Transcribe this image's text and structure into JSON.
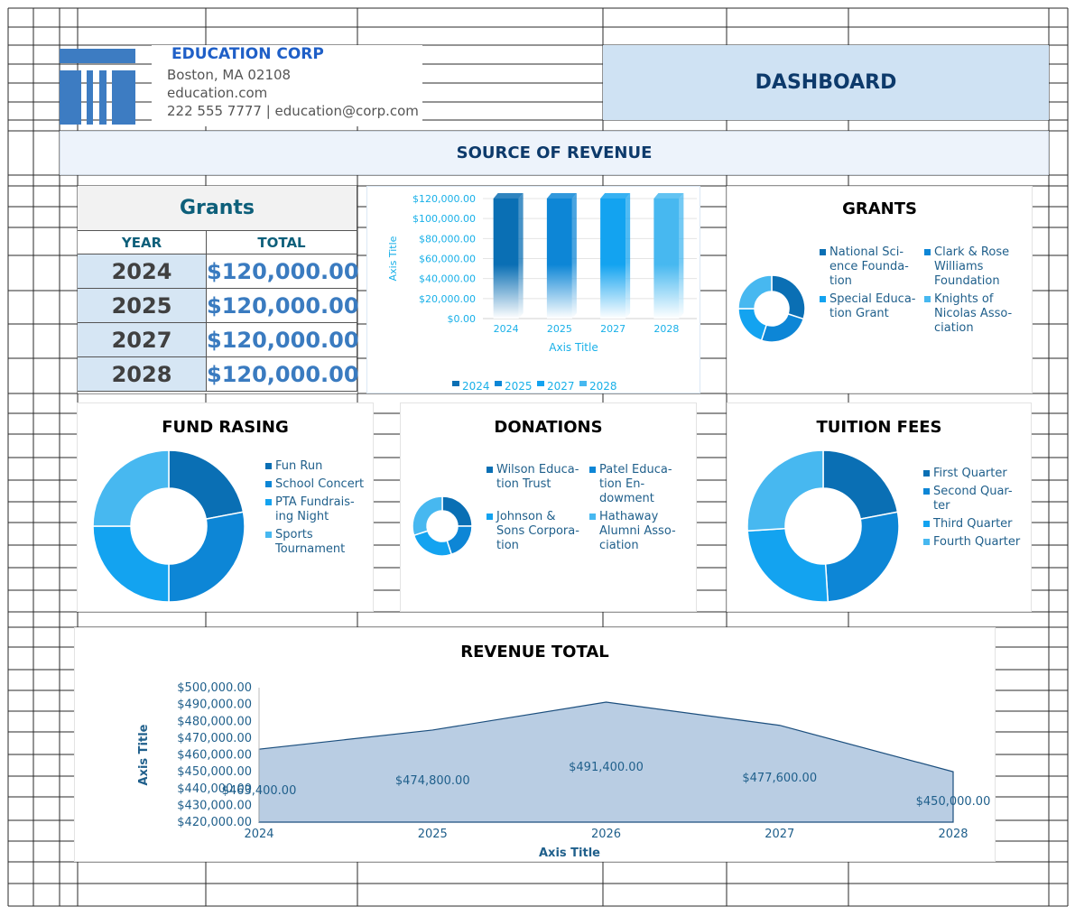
{
  "company": {
    "name": "EDUCATION CORP",
    "address": "Boston, MA 02108",
    "website": "education.com",
    "contact": "222 555 7777 | education@corp.com"
  },
  "dashboard_title": "DASHBOARD",
  "section_title": "SOURCE OF REVENUE",
  "grants_table": {
    "title": "Grants",
    "col_year": "YEAR",
    "col_total": "TOTAL",
    "rows": [
      {
        "year": "2024",
        "total": "$120,000.00"
      },
      {
        "year": "2025",
        "total": "$120,000.00"
      },
      {
        "year": "2027",
        "total": "$120,000.00"
      },
      {
        "year": "2028",
        "total": "$120,000.00"
      }
    ]
  },
  "colors": {
    "c1": "#0a6fb4",
    "c2": "#0d86d6",
    "c3": "#13a3f0",
    "c4": "#47b8f0",
    "header_blue": "#1f5fc7",
    "navy": "#0d3a6b",
    "light_panel": "#cfe2f3"
  },
  "chart_data": [
    {
      "type": "bar",
      "categories": [
        "2024",
        "2025",
        "2027",
        "2028"
      ],
      "values": [
        120000,
        120000,
        120000,
        120000
      ],
      "xlabel": "Axis Title",
      "ylabel": "Axis Title",
      "ylim": [
        0,
        120000
      ],
      "yticks": [
        "$0.00",
        "$20,000.00",
        "$40,000.00",
        "$60,000.00",
        "$80,000.00",
        "$100,000.00",
        "$120,000.00"
      ],
      "legend": [
        "2024",
        "2025",
        "2027",
        "2028"
      ],
      "legend_position": "bottom"
    },
    {
      "type": "pie",
      "title": "GRANTS",
      "labels": [
        "National Science Foundation",
        "Clark & Rose Williams Foundation",
        "Special Education Grant",
        "Knights of Nicolas Association"
      ],
      "legend_lines": [
        [
          "National Sci-",
          "ence Founda-",
          "tion"
        ],
        [
          "Clark & Rose",
          "Williams",
          "Foundation"
        ],
        [
          "Special Educa-",
          "tion Grant"
        ],
        [
          "Knights of",
          "Nicolas Asso-",
          "ciation"
        ]
      ],
      "values": [
        30,
        25,
        20,
        25
      ]
    },
    {
      "type": "pie",
      "title": "FUND RASING",
      "labels": [
        "Fun Run",
        "School Concert",
        "PTA Fundraising Night",
        "Sports Tournament"
      ],
      "legend_lines": [
        [
          "Fun Run"
        ],
        [
          "School Concert"
        ],
        [
          "PTA Fundrais-",
          "ing Night"
        ],
        [
          "Sports",
          "Tournament"
        ]
      ],
      "values": [
        22,
        28,
        25,
        25
      ]
    },
    {
      "type": "pie",
      "title": "DONATIONS",
      "labels": [
        "Wilson Education Trust",
        "Patel Education Endowment",
        "Johnson & Sons Corporation",
        "Hathaway Alumni Association"
      ],
      "legend_lines": [
        [
          "Wilson Educa-",
          "tion Trust"
        ],
        [
          "Patel Educa-",
          "tion En-",
          "dowment"
        ],
        [
          "Johnson &",
          "Sons Corpora-",
          "tion"
        ],
        [
          "Hathaway",
          "Alumni Asso-",
          "ciation"
        ]
      ],
      "values": [
        25,
        20,
        25,
        30
      ]
    },
    {
      "type": "pie",
      "title": "TUITION FEES",
      "labels": [
        "First Quarter",
        "Second Quarter",
        "Third Quarter",
        "Fourth Quarter"
      ],
      "legend_lines": [
        [
          "First Quarter"
        ],
        [
          "Second Quar-",
          "ter"
        ],
        [
          "Third Quarter"
        ],
        [
          "Fourth Quarter"
        ]
      ],
      "values": [
        22,
        27,
        25,
        26
      ]
    },
    {
      "type": "area",
      "title": "REVENUE TOTAL",
      "x": [
        "2024",
        "2025",
        "2026",
        "2027",
        "2028"
      ],
      "values": [
        463400,
        474800,
        491400,
        477600,
        450000
      ],
      "data_labels": [
        "$463,400.00",
        "$474,800.00",
        "$491,400.00",
        "$477,600.00",
        "$450,000.00"
      ],
      "ylim": [
        420000,
        500000
      ],
      "yticks": [
        "$420,000.00",
        "$430,000.00",
        "$440,000.00",
        "$450,000.00",
        "$460,000.00",
        "$470,000.00",
        "$480,000.00",
        "$490,000.00",
        "$500,000.00"
      ],
      "xlabel": "Axis Title",
      "ylabel": "Axis Title"
    }
  ]
}
